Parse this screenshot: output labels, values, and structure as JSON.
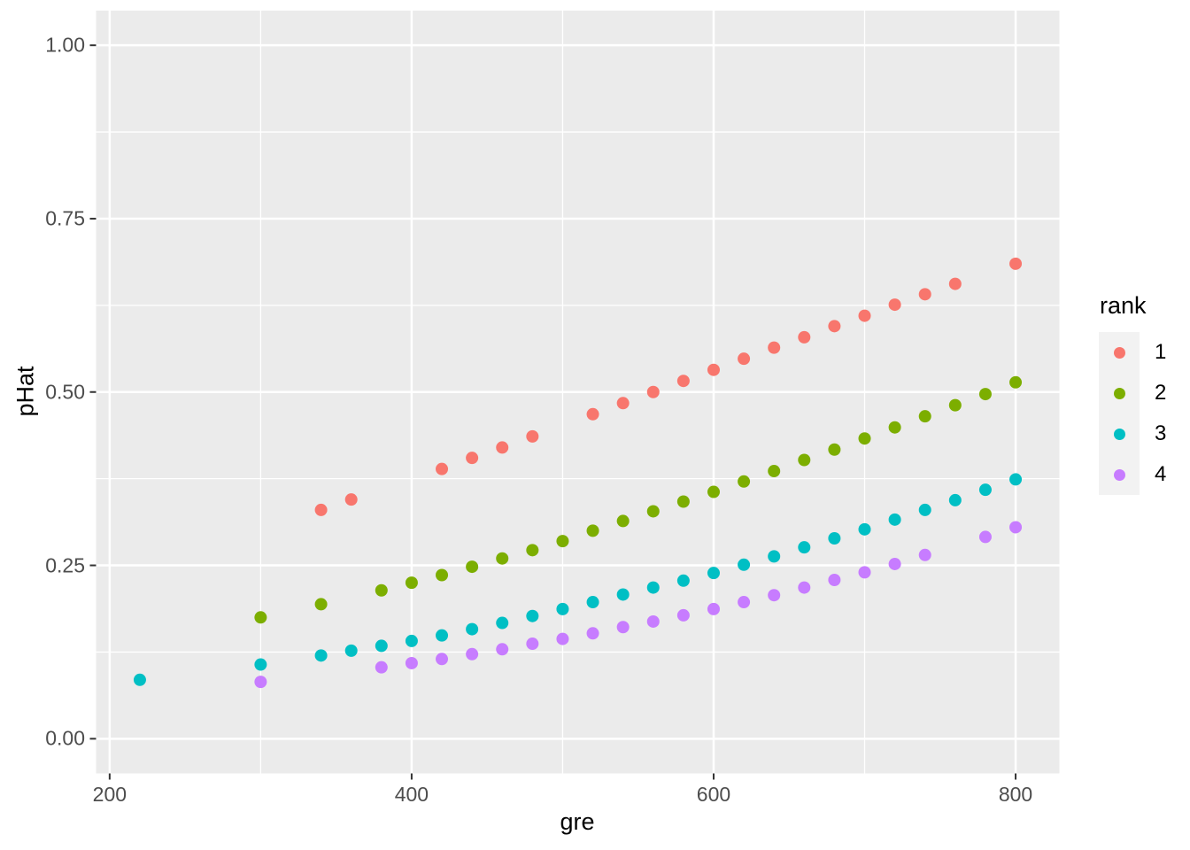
{
  "colors": {
    "panel_bg": "#EBEBEB",
    "grid": "#FFFFFF",
    "tick_mark": "#333333",
    "tick_label_color": "#4D4D4D",
    "axis_title_color": "#000000",
    "legend_key_bg": "#F2F2F2"
  },
  "chart_data": {
    "type": "scatter",
    "title": "",
    "xlabel": "gre",
    "ylabel": "pHat",
    "legend_title": "rank",
    "legend_position": "right",
    "grid": true,
    "x_domain": [
      191,
      829
    ],
    "y_domain": [
      -0.05,
      1.05
    ],
    "x_ticks": [
      200,
      400,
      600,
      800
    ],
    "x_minor_ticks": [
      300,
      500,
      700
    ],
    "y_ticks": [
      {
        "v": 0.0,
        "label": "0.00"
      },
      {
        "v": 0.25,
        "label": "0.25"
      },
      {
        "v": 0.5,
        "label": "0.50"
      },
      {
        "v": 0.75,
        "label": "0.75"
      },
      {
        "v": 1.0,
        "label": "1.00"
      }
    ],
    "y_minor_ticks": [
      0.125,
      0.375,
      0.625,
      0.875
    ],
    "point_radius": 7,
    "series": [
      {
        "name": "1",
        "color": "#F8766D",
        "points": [
          [
            340,
            0.33
          ],
          [
            360,
            0.345
          ],
          [
            420,
            0.389
          ],
          [
            440,
            0.405
          ],
          [
            460,
            0.42
          ],
          [
            480,
            0.436
          ],
          [
            520,
            0.468
          ],
          [
            540,
            0.484
          ],
          [
            560,
            0.5
          ],
          [
            580,
            0.516
          ],
          [
            600,
            0.532
          ],
          [
            620,
            0.548
          ],
          [
            640,
            0.564
          ],
          [
            660,
            0.579
          ],
          [
            680,
            0.595
          ],
          [
            700,
            0.61
          ],
          [
            720,
            0.626
          ],
          [
            740,
            0.641
          ],
          [
            760,
            0.656
          ],
          [
            800,
            0.685
          ]
        ]
      },
      {
        "name": "2",
        "color": "#7CAE00",
        "points": [
          [
            300,
            0.175
          ],
          [
            340,
            0.194
          ],
          [
            380,
            0.214
          ],
          [
            400,
            0.225
          ],
          [
            420,
            0.236
          ],
          [
            440,
            0.248
          ],
          [
            460,
            0.26
          ],
          [
            480,
            0.272
          ],
          [
            500,
            0.285
          ],
          [
            520,
            0.3
          ],
          [
            540,
            0.314
          ],
          [
            560,
            0.328
          ],
          [
            580,
            0.342
          ],
          [
            600,
            0.356
          ],
          [
            620,
            0.371
          ],
          [
            640,
            0.386
          ],
          [
            660,
            0.402
          ],
          [
            680,
            0.417
          ],
          [
            700,
            0.433
          ],
          [
            720,
            0.449
          ],
          [
            740,
            0.465
          ],
          [
            760,
            0.481
          ],
          [
            780,
            0.497
          ],
          [
            800,
            0.514
          ]
        ]
      },
      {
        "name": "3",
        "color": "#00BFC4",
        "points": [
          [
            220,
            0.085
          ],
          [
            300,
            0.107
          ],
          [
            340,
            0.12
          ],
          [
            360,
            0.127
          ],
          [
            380,
            0.134
          ],
          [
            400,
            0.141
          ],
          [
            420,
            0.149
          ],
          [
            440,
            0.158
          ],
          [
            460,
            0.167
          ],
          [
            480,
            0.177
          ],
          [
            500,
            0.187
          ],
          [
            520,
            0.197
          ],
          [
            540,
            0.208
          ],
          [
            560,
            0.218
          ],
          [
            580,
            0.228
          ],
          [
            600,
            0.239
          ],
          [
            620,
            0.251
          ],
          [
            640,
            0.263
          ],
          [
            660,
            0.276
          ],
          [
            680,
            0.289
          ],
          [
            700,
            0.302
          ],
          [
            720,
            0.316
          ],
          [
            740,
            0.33
          ],
          [
            760,
            0.344
          ],
          [
            780,
            0.359
          ],
          [
            800,
            0.374
          ]
        ]
      },
      {
        "name": "4",
        "color": "#C77CFF",
        "points": [
          [
            300,
            0.082
          ],
          [
            380,
            0.103
          ],
          [
            400,
            0.109
          ],
          [
            420,
            0.115
          ],
          [
            440,
            0.122
          ],
          [
            460,
            0.129
          ],
          [
            480,
            0.137
          ],
          [
            500,
            0.144
          ],
          [
            520,
            0.152
          ],
          [
            540,
            0.161
          ],
          [
            560,
            0.169
          ],
          [
            580,
            0.178
          ],
          [
            600,
            0.187
          ],
          [
            620,
            0.197
          ],
          [
            640,
            0.207
          ],
          [
            660,
            0.218
          ],
          [
            680,
            0.229
          ],
          [
            700,
            0.24
          ],
          [
            720,
            0.252
          ],
          [
            740,
            0.265
          ],
          [
            780,
            0.291
          ],
          [
            800,
            0.305
          ]
        ]
      }
    ]
  }
}
